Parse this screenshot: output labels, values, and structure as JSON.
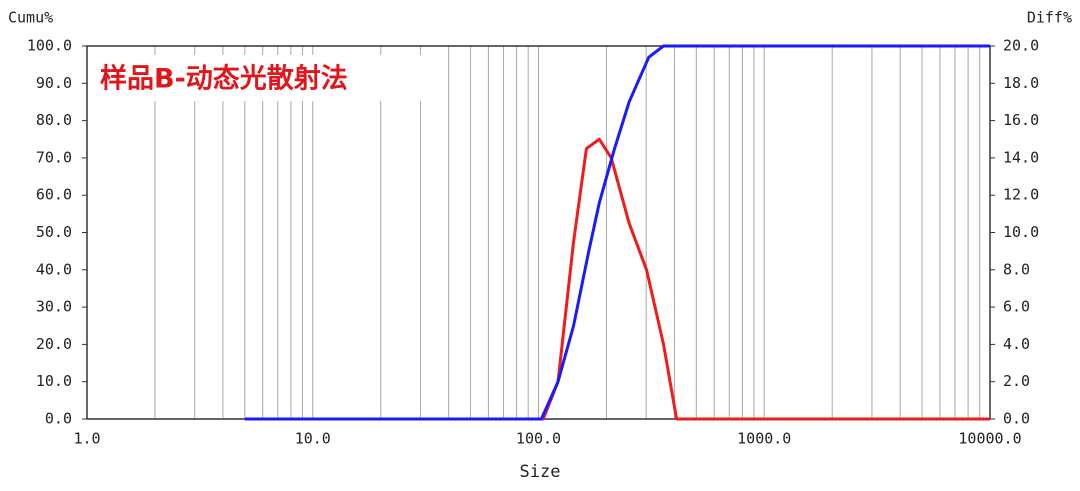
{
  "chart_data": {
    "type": "line",
    "annotation": "样品B-动态光散射法",
    "x_label": "Size",
    "y_label": "Cumu%",
    "y2_label": "Diff%",
    "xscale": "log",
    "xlim": [
      1,
      10000
    ],
    "xticks": [
      {
        "value": 1,
        "label": "1.0"
      },
      {
        "value": 10,
        "label": "10.0"
      },
      {
        "value": 100,
        "label": "100.0"
      },
      {
        "value": 1000,
        "label": "1000.0"
      },
      {
        "value": 10000,
        "label": "10000.0"
      }
    ],
    "xgrid_minor": [
      2,
      3,
      4,
      5,
      6,
      7,
      8,
      9,
      20,
      30,
      40,
      50,
      60,
      70,
      80,
      90,
      200,
      300,
      400,
      500,
      600,
      700,
      800,
      900,
      2000,
      3000,
      4000,
      5000,
      6000,
      7000,
      8000,
      9000
    ],
    "ylim": [
      0,
      100
    ],
    "yticks": [
      {
        "value": 0,
        "label": "0.0"
      },
      {
        "value": 10,
        "label": "10.0"
      },
      {
        "value": 20,
        "label": "20.0"
      },
      {
        "value": 30,
        "label": "30.0"
      },
      {
        "value": 40,
        "label": "40.0"
      },
      {
        "value": 50,
        "label": "50.0"
      },
      {
        "value": 60,
        "label": "60.0"
      },
      {
        "value": 70,
        "label": "70.0"
      },
      {
        "value": 80,
        "label": "80.0"
      },
      {
        "value": 90,
        "label": "90.0"
      },
      {
        "value": 100,
        "label": "100.0"
      }
    ],
    "y2lim": [
      0,
      20
    ],
    "y2ticks": [
      {
        "value": 0,
        "label": "0.0"
      },
      {
        "value": 2,
        "label": "2.0"
      },
      {
        "value": 4,
        "label": "4.0"
      },
      {
        "value": 6,
        "label": "6.0"
      },
      {
        "value": 8,
        "label": "8.0"
      },
      {
        "value": 10,
        "label": "10.0"
      },
      {
        "value": 12,
        "label": "12.0"
      },
      {
        "value": 14,
        "label": "14.0"
      },
      {
        "value": 16,
        "label": "16.0"
      },
      {
        "value": 18,
        "label": "18.0"
      },
      {
        "value": 20,
        "label": "20.0"
      }
    ],
    "grid": true,
    "series": [
      {
        "color": "#1a1aff",
        "x": [
          5,
          100,
          103,
          122,
          143,
          167,
          186,
          216,
          252,
          308,
          358,
          10000
        ],
        "values": [
          0,
          0,
          0,
          10,
          25,
          45,
          58,
          72,
          85,
          97,
          100,
          100
        ]
      },
      {
        "color": "#ee1c1c",
        "axis": "y2",
        "x": [
          100,
          105,
          122,
          143,
          163,
          186,
          210,
          252,
          301,
          358,
          409,
          10000
        ],
        "values": [
          0,
          0,
          2,
          9.5,
          14.5,
          15,
          14,
          10.5,
          8,
          4,
          0,
          0
        ]
      }
    ]
  }
}
